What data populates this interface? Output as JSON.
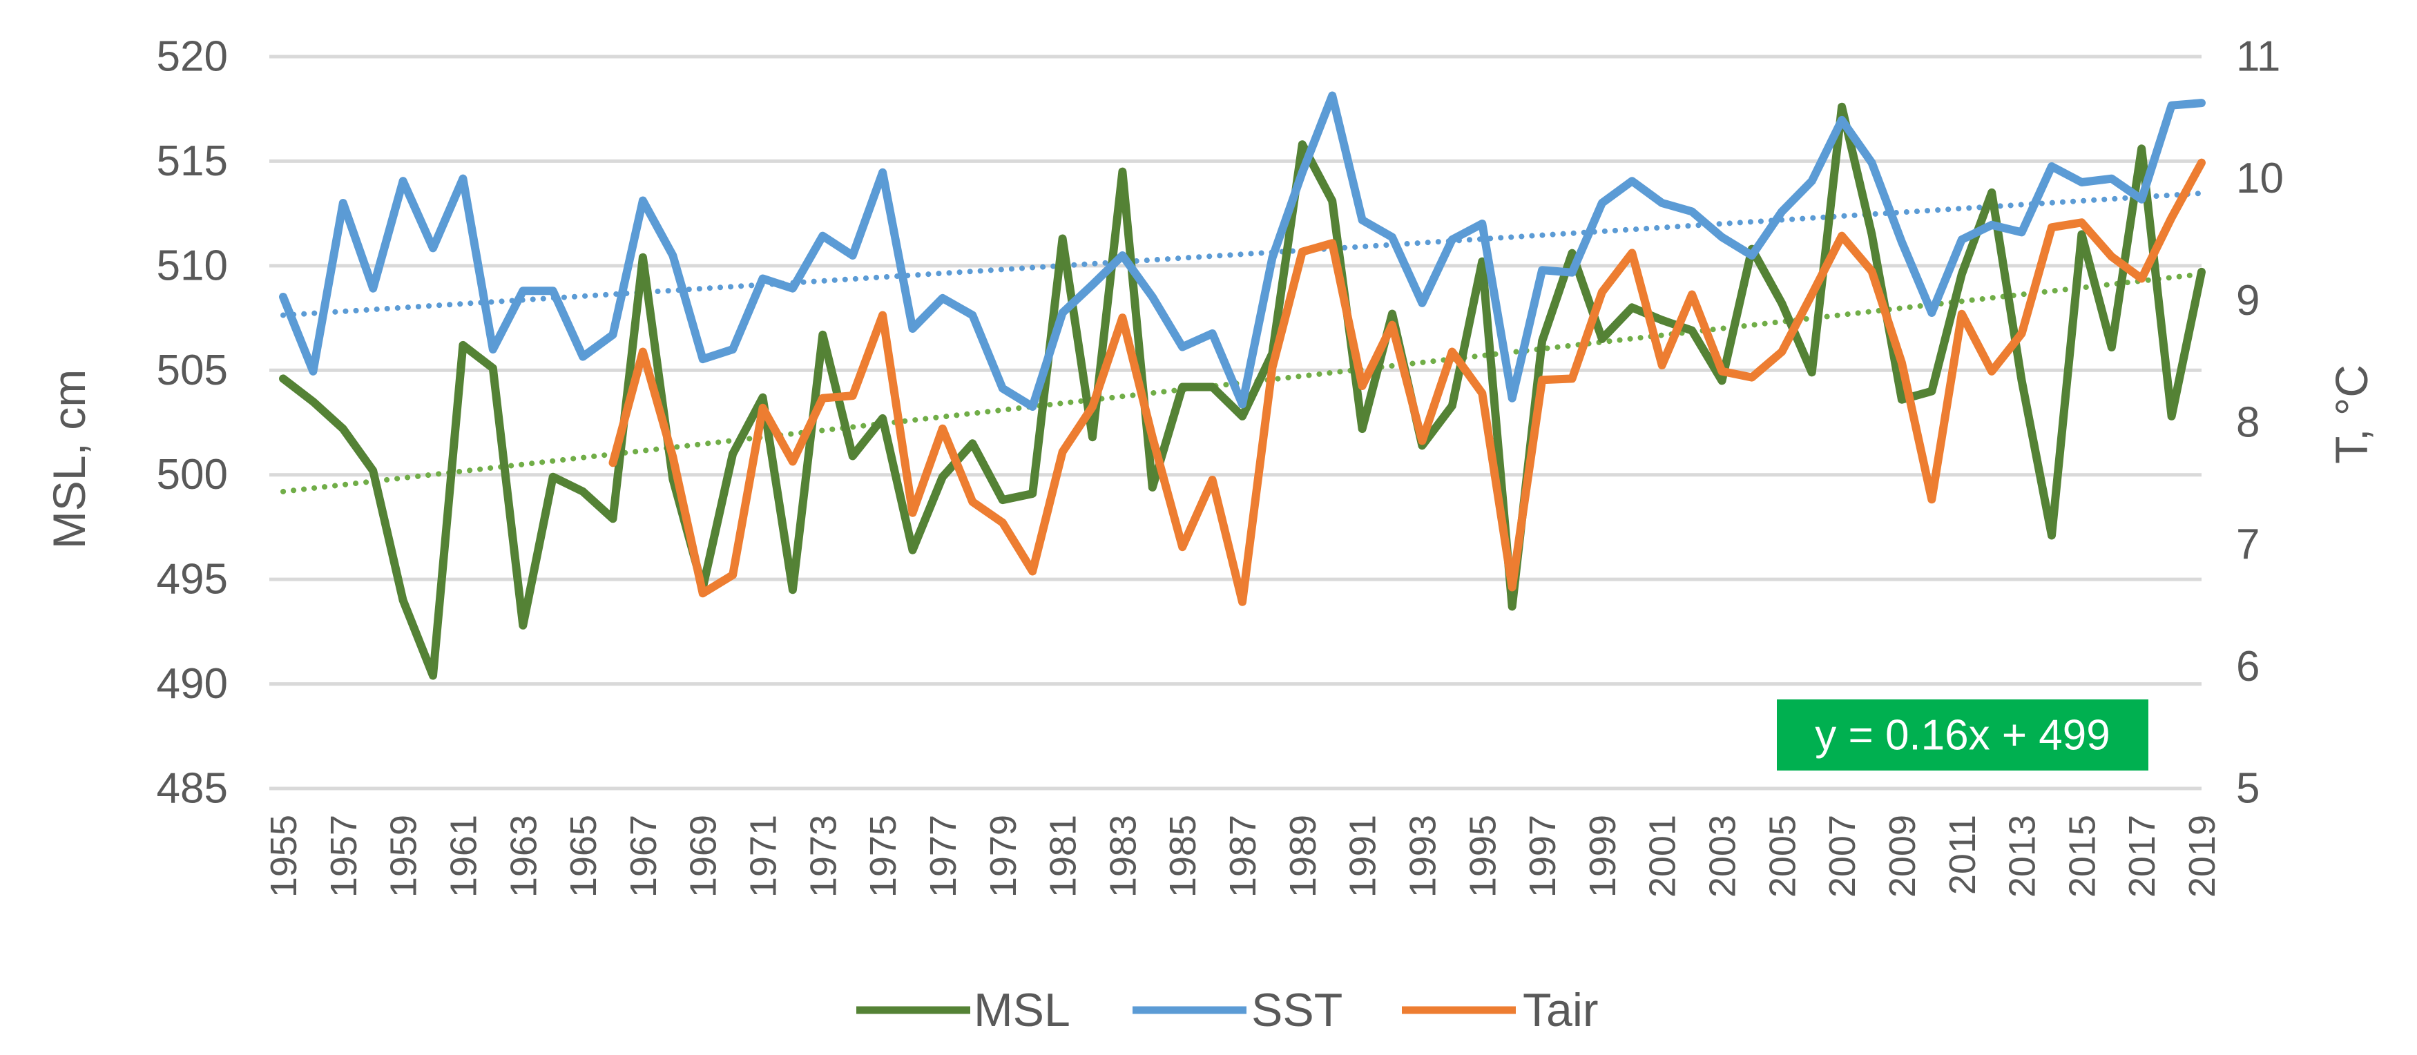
{
  "chart_data": {
    "type": "line",
    "title": "",
    "ylabel_left": "MSL, cm",
    "ylabel_right": "T, °C",
    "ylim_left": [
      485,
      520
    ],
    "ylim_right": [
      5,
      11
    ],
    "yticks_left": [
      485,
      490,
      495,
      500,
      505,
      510,
      515,
      520
    ],
    "yticks_right": [
      5,
      6,
      7,
      8,
      9,
      10,
      11
    ],
    "x_start": 1955,
    "x_end": 2019,
    "xtick_labels": [
      "1955",
      "1957",
      "1959",
      "1961",
      "1963",
      "1965",
      "1967",
      "1969",
      "1971",
      "1973",
      "1975",
      "1977",
      "1979",
      "1981",
      "1983",
      "1985",
      "1987",
      "1989",
      "1991",
      "1993",
      "1995",
      "1997",
      "1999",
      "2001",
      "2003",
      "2005",
      "2007",
      "2009",
      "2011",
      "2013",
      "2015",
      "2017",
      "2019"
    ],
    "grid": true,
    "legend_position": "bottom",
    "colors": {
      "MSL": "#548235",
      "SST": "#5B9BD5",
      "Tair": "#ED7D31",
      "MSL_trend": "#70AD47",
      "SST_trend": "#5B9BD5",
      "eq_box": "#00B050",
      "grid": "#D9D9D9"
    },
    "series": [
      {
        "name": "MSL",
        "axis": "left",
        "start_year": 1955,
        "values": [
          504.6,
          503.5,
          502.2,
          500.2,
          494.0,
          490.4,
          506.2,
          505.1,
          492.8,
          499.9,
          499.2,
          497.9,
          510.4,
          499.8,
          494.6,
          501.0,
          503.7,
          494.5,
          506.7,
          500.9,
          502.7,
          496.4,
          499.9,
          501.5,
          498.8,
          499.1,
          511.3,
          501.8,
          514.5,
          499.4,
          504.2,
          504.2,
          502.8,
          505.8,
          515.8,
          513.1,
          502.2,
          507.7,
          501.4,
          503.3,
          510.2,
          493.7,
          506.4,
          510.6,
          506.5,
          508.0,
          507.4,
          506.9,
          504.5,
          510.8,
          508.2,
          504.9,
          517.6,
          511.5,
          503.6,
          504.0,
          509.6,
          513.5,
          504.5,
          497.1,
          511.5,
          506.1,
          515.6,
          502.8,
          509.7
        ]
      },
      {
        "name": "SST",
        "axis": "right",
        "start_year": 1955,
        "values": [
          9.03,
          8.42,
          9.8,
          9.1,
          9.98,
          9.43,
          10.0,
          8.6,
          9.08,
          9.08,
          8.54,
          8.72,
          9.82,
          9.37,
          8.52,
          8.6,
          9.18,
          9.1,
          9.53,
          9.37,
          10.05,
          8.77,
          9.02,
          8.88,
          8.28,
          8.13,
          8.9,
          9.13,
          9.37,
          9.03,
          8.62,
          8.73,
          8.15,
          9.35,
          10.05,
          10.68,
          9.66,
          9.52,
          8.98,
          9.5,
          9.63,
          8.2,
          9.25,
          9.23,
          9.8,
          9.98,
          9.8,
          9.73,
          9.52,
          9.37,
          9.73,
          9.98,
          10.48,
          10.13,
          9.48,
          8.9,
          9.5,
          9.62,
          9.56,
          10.1,
          9.97,
          10.0,
          9.83,
          10.6,
          10.62
        ]
      },
      {
        "name": "Tair",
        "axis": "right",
        "start_year": 1966,
        "values": [
          7.67,
          8.58,
          7.72,
          6.6,
          6.75,
          8.12,
          7.68,
          8.2,
          8.22,
          8.88,
          7.26,
          7.95,
          7.35,
          7.18,
          6.78,
          7.76,
          8.13,
          8.86,
          7.88,
          6.98,
          7.53,
          6.53,
          8.45,
          9.4,
          9.47,
          8.3,
          8.8,
          7.85,
          8.58,
          8.24,
          6.65,
          8.35,
          8.36,
          9.07,
          9.39,
          8.47,
          9.05,
          8.42,
          8.37,
          8.58,
          9.05,
          9.53,
          9.24,
          8.49,
          7.37,
          8.89,
          8.42,
          8.73,
          9.6,
          9.64,
          9.36,
          9.18,
          9.68,
          10.13
        ]
      }
    ],
    "trendlines": [
      {
        "series": "MSL",
        "axis": "left",
        "type": "linear",
        "x_start": 1955,
        "x_end": 2019,
        "y_start": 499.2,
        "y_end": 509.6,
        "color": "MSL_trend"
      },
      {
        "series": "SST",
        "axis": "right",
        "type": "linear",
        "x_start": 1955,
        "x_end": 2019,
        "y_start": 8.88,
        "y_end": 9.88,
        "color": "SST_trend"
      }
    ],
    "annotation": {
      "text": "y = 0.16x + 499"
    },
    "legend": [
      "MSL",
      "SST",
      "Tair"
    ]
  }
}
